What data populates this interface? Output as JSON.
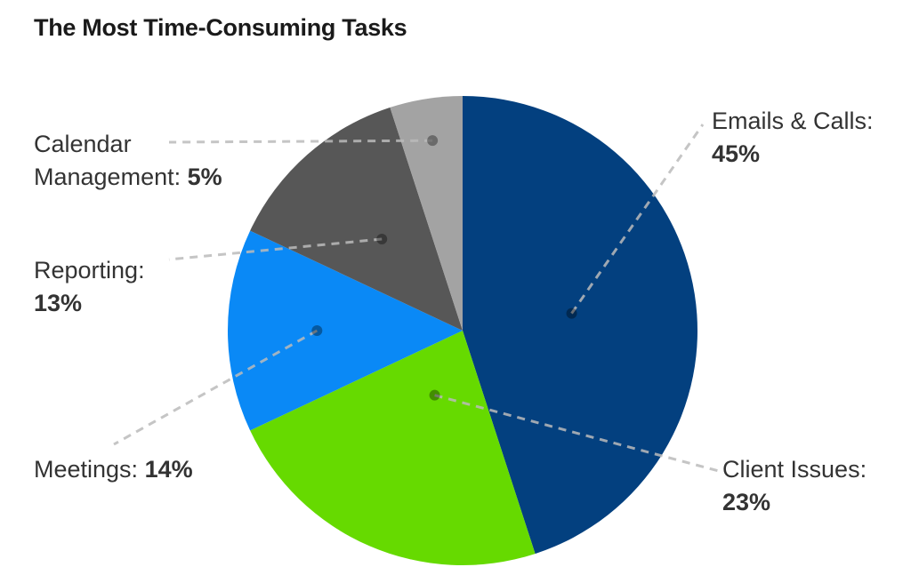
{
  "chart_data": {
    "type": "pie",
    "title": "The Most Time-Consuming Tasks",
    "slices": [
      {
        "label": "Emails & Calls:",
        "value": 45,
        "value_label": "45%",
        "color": "#03407f"
      },
      {
        "label": "Client Issues:",
        "value": 23,
        "value_label": "23%",
        "color": "#66da00"
      },
      {
        "label": "Meetings:",
        "value": 14,
        "value_label": "14%",
        "color": "#0a89f6"
      },
      {
        "label": "Reporting:",
        "value": 13,
        "value_label": "13%",
        "color": "#575757"
      },
      {
        "label_line1": "Calendar",
        "label_line2": "Management:",
        "value": 5,
        "value_label": "5%",
        "color": "#a3a3a3"
      }
    ],
    "start_angle": "12 o'clock",
    "direction": "clockwise",
    "leader_line_color": "#bbbbbb"
  }
}
